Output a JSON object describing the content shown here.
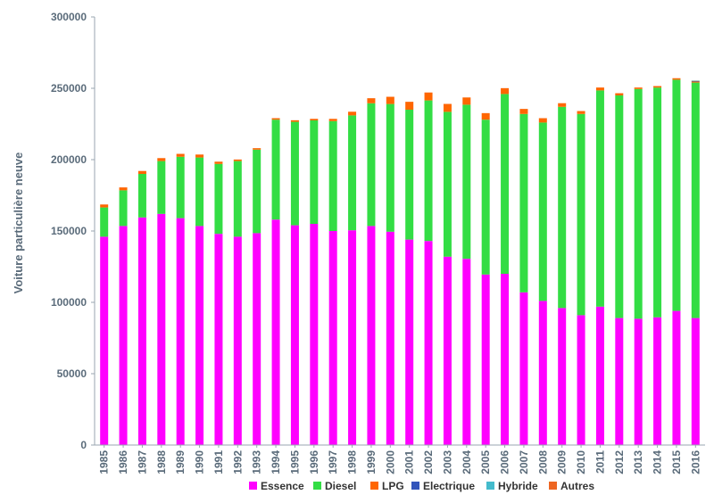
{
  "chart_data": {
    "type": "bar",
    "stacked": true,
    "ylabel": "Voiture particulière neuve",
    "xlabel": "",
    "ylim": [
      0,
      300000
    ],
    "yticks": [
      0,
      50000,
      100000,
      150000,
      200000,
      250000,
      300000
    ],
    "grid": false,
    "legend_position": "bottom",
    "categories": [
      "1985",
      "1986",
      "1987",
      "1988",
      "1989",
      "1990",
      "1991",
      "1992",
      "1993",
      "1994",
      "1995",
      "1996",
      "1997",
      "1998",
      "1999",
      "2000",
      "2001",
      "2002",
      "2003",
      "2004",
      "2005",
      "2006",
      "2007",
      "2008",
      "2009",
      "2010",
      "2011",
      "2012",
      "2013",
      "2014",
      "2015",
      "2016"
    ],
    "series": [
      {
        "name": "Essence",
        "color": "#ff00ff",
        "values": [
          146000,
          153500,
          159500,
          162000,
          159000,
          153500,
          148000,
          146000,
          148500,
          158000,
          154000,
          155000,
          150000,
          150500,
          153500,
          149500,
          144000,
          143000,
          132000,
          130500,
          119500,
          120000,
          107000,
          101000,
          96000,
          91000,
          97000,
          89000,
          88500,
          89500,
          94000,
          89000
        ]
      },
      {
        "name": "Diesel",
        "color": "#33dd44",
        "values": [
          20500,
          25000,
          30500,
          37000,
          43000,
          48000,
          49000,
          53000,
          58500,
          70000,
          72500,
          72500,
          77000,
          80500,
          86000,
          89500,
          91000,
          98500,
          101500,
          108000,
          108500,
          126000,
          125000,
          125000,
          141000,
          141000,
          151500,
          156000,
          161000,
          161000,
          162000,
          165000
        ]
      },
      {
        "name": "LPG",
        "color": "#ff6600",
        "values": [
          2000,
          2000,
          2000,
          2000,
          2000,
          2000,
          1500,
          1000,
          1000,
          1000,
          1000,
          1000,
          1500,
          2500,
          3500,
          5000,
          5500,
          5500,
          5500,
          5000,
          4500,
          4000,
          3500,
          3000,
          2500,
          2000,
          2000,
          1500,
          1000,
          1000,
          1000,
          700
        ]
      },
      {
        "name": "Electrique",
        "color": "#3355bb",
        "values": [
          0,
          0,
          0,
          0,
          0,
          0,
          0,
          0,
          0,
          0,
          0,
          0,
          0,
          0,
          0,
          0,
          0,
          0,
          0,
          0,
          0,
          0,
          0,
          0,
          0,
          0,
          0,
          0,
          0,
          0,
          0,
          300
        ]
      },
      {
        "name": "Hybride",
        "color": "#44bbcc",
        "values": [
          0,
          0,
          0,
          0,
          0,
          0,
          0,
          0,
          0,
          0,
          0,
          0,
          0,
          0,
          0,
          0,
          0,
          0,
          0,
          0,
          0,
          0,
          0,
          0,
          0,
          0,
          0,
          0,
          0,
          0,
          0,
          300
        ]
      },
      {
        "name": "Autres",
        "color": "#ee6622",
        "values": [
          100,
          100,
          100,
          100,
          100,
          100,
          100,
          100,
          100,
          100,
          100,
          100,
          100,
          100,
          100,
          100,
          100,
          100,
          100,
          100,
          100,
          100,
          100,
          100,
          100,
          100,
          100,
          100,
          100,
          100,
          100,
          100
        ]
      }
    ]
  }
}
